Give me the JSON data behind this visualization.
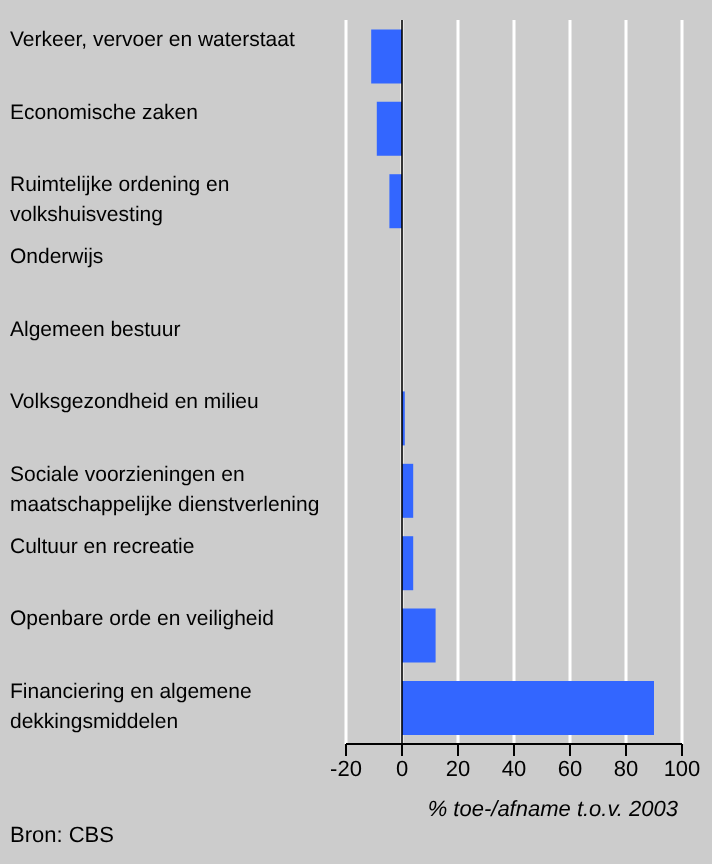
{
  "chart_data": {
    "type": "bar",
    "orientation": "horizontal",
    "categories": [
      "Verkeer, vervoer en waterstaat",
      "Economische zaken",
      "Ruimtelijke ordening en volkshuisvesting",
      "Onderwijs",
      "Algemeen bestuur",
      "Volksgezondheid en milieu",
      "Sociale voorzieningen en maatschappelijke dienstverlening",
      "Cultuur en recreatie",
      "Openbare orde en veiligheid",
      "Financiering en algemene dekkingsmiddelen"
    ],
    "values": [
      -11,
      -9,
      -4.5,
      0,
      0,
      1,
      4,
      4,
      12,
      90
    ],
    "color": "#3366ff",
    "xlim": [
      -20,
      100
    ],
    "xticks": [
      -20,
      0,
      20,
      40,
      60,
      80,
      100
    ],
    "xlabel": "% toe-/afname t.o.v. 2003",
    "grid": "x",
    "ref_lines": [
      {
        "axis": "x",
        "value": 0,
        "color": "#000000"
      }
    ],
    "annotations": [
      "Bron: CBS"
    ]
  }
}
